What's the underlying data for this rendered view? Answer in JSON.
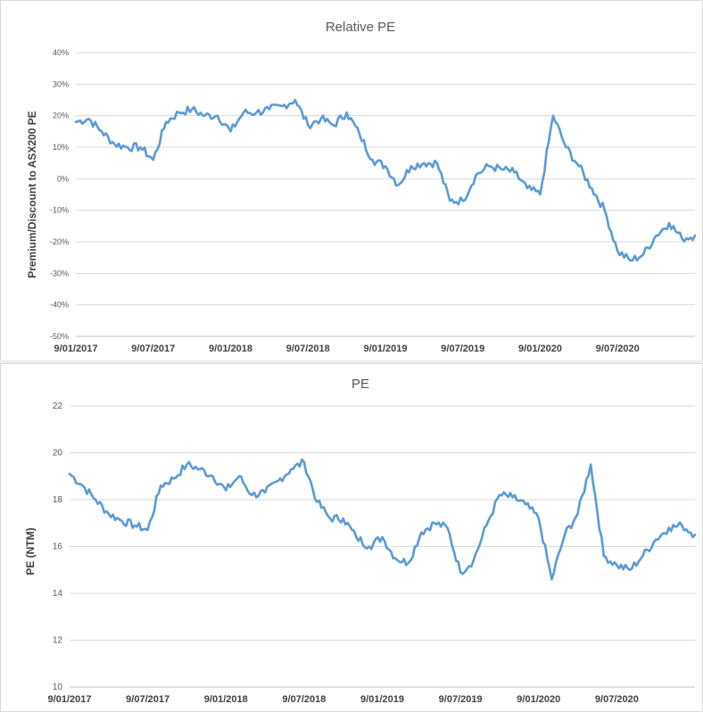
{
  "charts": [
    {
      "type": "line",
      "title": "Relative PE",
      "ylabel": "Premium/Discount to ASX200  PE",
      "xlabel": "",
      "ylim": [
        -50,
        40
      ],
      "y_ticks": [
        40,
        30,
        20,
        10,
        0,
        -10,
        -20,
        -30,
        -40,
        -50
      ],
      "y_tick_labels": [
        "40%",
        "30%",
        "20%",
        "10%",
        "0%",
        "-10%",
        "-20%",
        "-30%",
        "-40%",
        "-50%"
      ],
      "x_tick_labels": [
        "9/01/2017",
        "9/07/2017",
        "9/01/2018",
        "9/07/2018",
        "9/01/2019",
        "9/07/2019",
        "9/01/2020",
        "9/07/2020"
      ],
      "x_range_months": [
        0,
        48
      ],
      "grid": true,
      "legend": "none",
      "series_color": "#5b9bd5",
      "x": [
        0,
        1,
        2,
        3,
        4,
        5,
        6,
        7,
        8,
        9,
        10,
        11,
        12,
        13,
        14,
        15,
        16,
        17,
        18,
        19,
        20,
        21,
        22,
        23,
        24,
        25,
        26,
        27,
        28,
        29,
        30,
        31,
        32,
        33,
        34,
        35,
        36,
        37,
        38,
        39,
        40,
        41,
        42,
        43,
        44,
        45,
        46,
        47,
        48
      ],
      "values": [
        18,
        19,
        15,
        11,
        10,
        10,
        6,
        18,
        21,
        22,
        20,
        20,
        15,
        21,
        21,
        22,
        23,
        25,
        17,
        19,
        17,
        21,
        14,
        6,
        4,
        -2,
        4,
        5,
        5,
        -7,
        -7,
        1,
        4,
        3,
        2,
        -3,
        -5,
        20,
        10,
        4,
        -3,
        -10,
        -23,
        -26,
        -24,
        -18,
        -14,
        -19,
        -18
      ]
    },
    {
      "type": "line",
      "title": "PE",
      "ylabel": "PE (NTM)",
      "xlabel": "",
      "ylim": [
        10,
        22
      ],
      "y_ticks": [
        22,
        20,
        18,
        16,
        14,
        12,
        10
      ],
      "y_tick_labels": [
        "22",
        "20",
        "18",
        "16",
        "14",
        "12",
        "10"
      ],
      "x_tick_labels": [
        "9/01/2017",
        "9/07/2017",
        "9/01/2018",
        "9/07/2018",
        "9/01/2019",
        "9/07/2019",
        "9/01/2020",
        "9/07/2020"
      ],
      "x_range_months": [
        0,
        48
      ],
      "grid": true,
      "legend": "none",
      "series_color": "#5b9bd5",
      "x": [
        0,
        1,
        2,
        3,
        4,
        5,
        6,
        7,
        8,
        9,
        10,
        11,
        12,
        13,
        14,
        15,
        16,
        17,
        18,
        19,
        20,
        21,
        22,
        23,
        24,
        25,
        26,
        27,
        28,
        29,
        30,
        31,
        32,
        33,
        34,
        35,
        36,
        37,
        38,
        39,
        40,
        41,
        42,
        43,
        44,
        45,
        46,
        47,
        48
      ],
      "values": [
        19.1,
        18.6,
        18.0,
        17.4,
        17.1,
        16.9,
        16.7,
        18.6,
        18.9,
        19.5,
        19.3,
        19.0,
        18.4,
        19.0,
        18.2,
        18.3,
        18.8,
        19.3,
        19.6,
        17.9,
        17.2,
        17.2,
        16.4,
        16.0,
        16.4,
        15.5,
        15.3,
        16.6,
        17.0,
        16.8,
        14.9,
        15.4,
        16.9,
        18.2,
        18.1,
        17.8,
        17.2,
        14.6,
        16.5,
        17.4,
        19.5,
        15.6,
        15.2,
        15.0,
        15.6,
        16.3,
        16.8,
        16.9,
        16.5
      ]
    }
  ]
}
